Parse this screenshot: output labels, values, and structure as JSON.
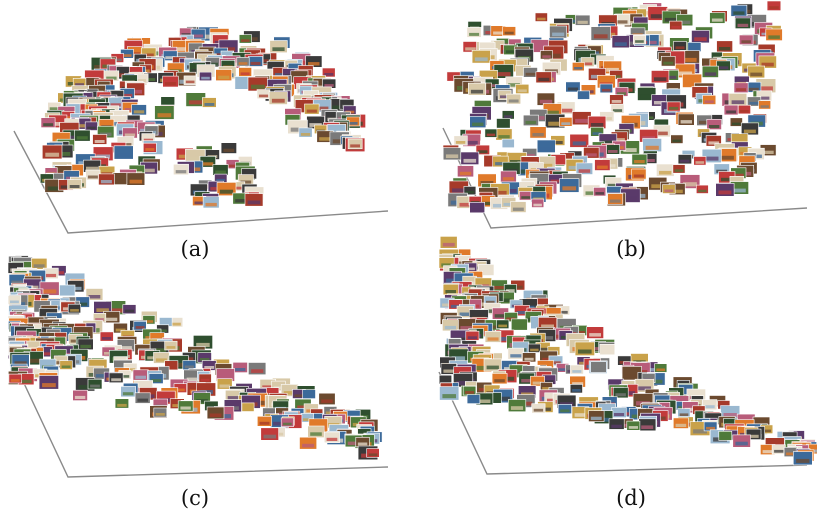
{
  "figure": {
    "panels": [
      {
        "id": "a",
        "caption": "(a)",
        "cloud": "dome"
      },
      {
        "id": "b",
        "caption": "(b)",
        "cloud": "uniform"
      },
      {
        "id": "c",
        "caption": "(c)",
        "cloud": "left-dense"
      },
      {
        "id": "d",
        "caption": "(d)",
        "cloud": "corner-tail"
      }
    ]
  },
  "colors": {
    "plane_edge": "#8a8a8a",
    "thumb_border": "#ffffff",
    "thumb_palette": [
      "#6b4a2f",
      "#a63a2a",
      "#4f7a3a",
      "#3c6a9a",
      "#c9a24a",
      "#7a7a7a",
      "#b85c7a",
      "#2f4f2f",
      "#d8c9a8",
      "#e07a2a",
      "#5a3a6a",
      "#9ab8d0",
      "#c23b3b",
      "#e9e0d0",
      "#3a3a3a"
    ]
  }
}
